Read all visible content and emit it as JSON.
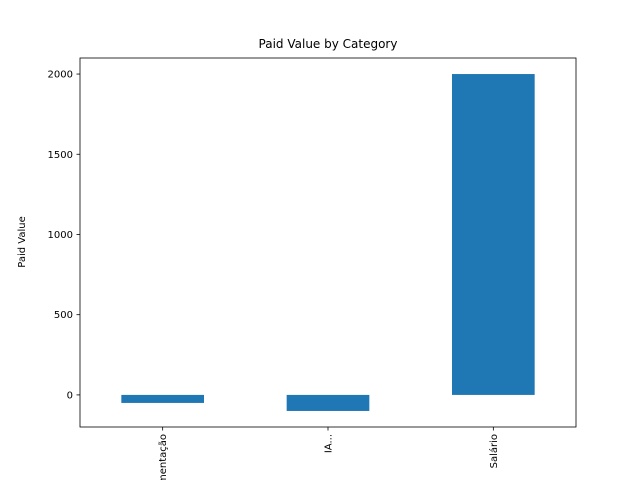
{
  "chart_data": {
    "type": "bar",
    "title": "Paid Value by Category",
    "xlabel": "",
    "ylabel": "Paid Value",
    "categories": [
      "Alimentação",
      "IA...",
      "Salário"
    ],
    "values": [
      -50,
      -100,
      2000
    ],
    "ylim": [
      -200,
      2100
    ],
    "yticks": [
      0,
      500,
      1000,
      1500,
      2000
    ],
    "bar_color": "#1f77b4",
    "grid": false,
    "legend": "none"
  }
}
